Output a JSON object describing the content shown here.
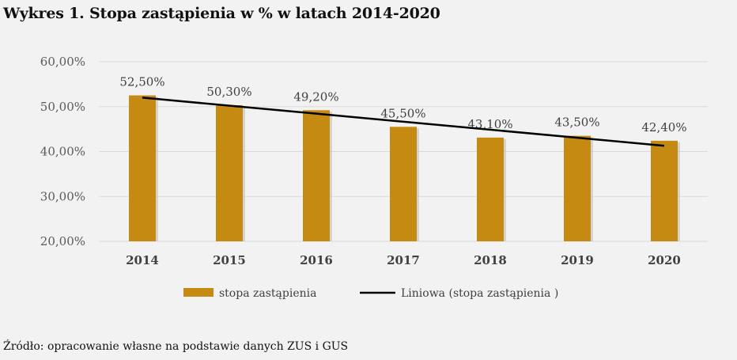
{
  "title": "Wykres 1. Stopa zastąpienia w % w latach 2014-2020",
  "source": "Źródło: opracowanie własne na podstawie danych ZUS i GUS",
  "chart_data": {
    "type": "bar",
    "title": "Wykres 1. Stopa zastąpienia w % w latach 2014-2020",
    "categories": [
      "2014",
      "2015",
      "2016",
      "2017",
      "2018",
      "2019",
      "2020"
    ],
    "series": [
      {
        "name": "stopa zastąpienia",
        "type": "bar",
        "color": "#c58a12",
        "values": [
          52.5,
          50.3,
          49.2,
          45.5,
          43.1,
          43.5,
          42.4
        ],
        "labels": [
          "52,50%",
          "50,30%",
          "49,20%",
          "45,50%",
          "43,10%",
          "43,50%",
          "42,40%"
        ]
      },
      {
        "name": "Liniowa (stopa zastąpienia )",
        "type": "linear-trendline",
        "color": "#000000"
      }
    ],
    "yticks": [
      "20,00%",
      "30,00%",
      "40,00%",
      "50,00%",
      "60,00%"
    ],
    "ylim": [
      20,
      60
    ],
    "grid": true,
    "legend": "bottom"
  }
}
